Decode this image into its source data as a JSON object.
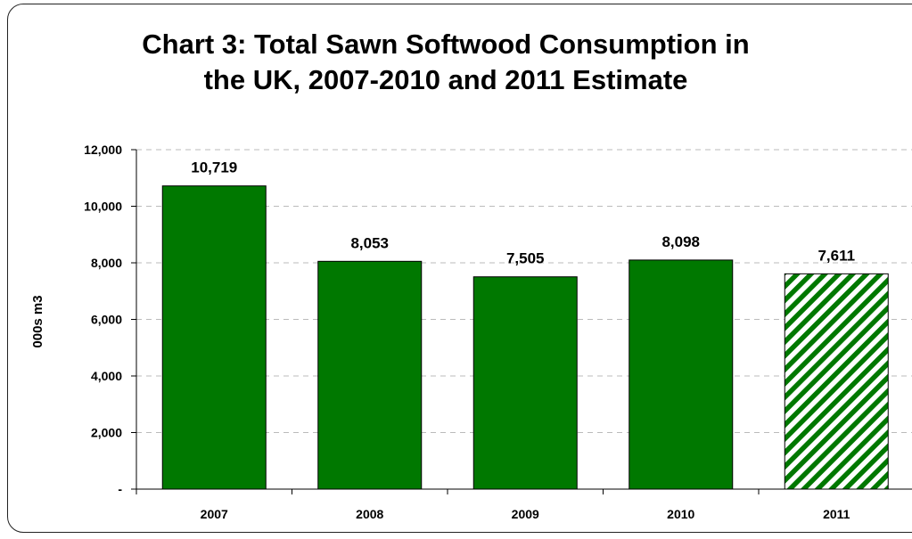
{
  "chart_data": {
    "type": "bar",
    "title_line1": "Chart 3: Total Sawn Softwood Consumption in",
    "title_line2": "the UK, 2007-2010 and 2011 Estimate",
    "ylabel": "000s m3",
    "categories": [
      "2007",
      "2008",
      "2009",
      "2010",
      "2011"
    ],
    "values": [
      10719,
      8053,
      7505,
      8098,
      7611
    ],
    "value_labels": [
      "10,719",
      "8,053",
      "7,505",
      "8,098",
      "7,611"
    ],
    "estimate_flags": [
      false,
      false,
      false,
      false,
      true
    ],
    "ylim": [
      0,
      12000
    ],
    "yticks": [
      0,
      2000,
      4000,
      6000,
      8000,
      10000,
      12000
    ],
    "ytick_labels": [
      "-",
      "2,000",
      "4,000",
      "6,000",
      "8,000",
      "10,000",
      "12,000"
    ],
    "grid": true,
    "colors": {
      "bar": "#007800",
      "bar_edge": "#000000",
      "estimate_stripe": "#007800",
      "grid": "#bbbbbb"
    }
  }
}
